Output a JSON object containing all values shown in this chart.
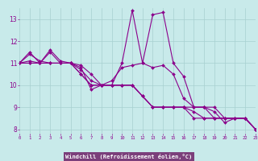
{
  "xlabel": "Windchill (Refroidissement éolien,°C)",
  "background_color": "#c8eaea",
  "line_color": "#8b008b",
  "xlabel_bg": "#7b3f7b",
  "xlabel_fg": "#ffffff",
  "x_hours": [
    0,
    1,
    2,
    3,
    4,
    5,
    6,
    7,
    8,
    9,
    10,
    11,
    12,
    13,
    14,
    15,
    16,
    17,
    18,
    19,
    20,
    21,
    22,
    23
  ],
  "series": [
    [
      11.0,
      11.5,
      11.0,
      11.5,
      11.0,
      11.0,
      10.5,
      10.0,
      10.0,
      10.0,
      10.0,
      10.0,
      9.5,
      9.0,
      9.0,
      9.0,
      9.0,
      8.5,
      8.5,
      8.5,
      8.5,
      8.5,
      8.5,
      8.0
    ],
    [
      11.0,
      11.1,
      11.0,
      11.6,
      11.1,
      11.0,
      10.8,
      9.8,
      10.0,
      10.0,
      11.0,
      13.4,
      11.0,
      13.2,
      13.3,
      11.0,
      10.4,
      9.0,
      9.0,
      8.8,
      8.3,
      8.5,
      8.5,
      8.0
    ],
    [
      11.0,
      11.4,
      11.1,
      11.0,
      11.0,
      11.0,
      10.9,
      10.5,
      10.0,
      10.2,
      10.8,
      10.9,
      11.0,
      10.8,
      10.9,
      10.5,
      9.4,
      9.0,
      9.0,
      9.0,
      8.5,
      8.5,
      8.5,
      8.0
    ],
    [
      11.0,
      11.0,
      11.0,
      11.0,
      11.0,
      11.0,
      10.7,
      10.2,
      10.0,
      10.0,
      10.0,
      10.0,
      9.5,
      9.0,
      9.0,
      9.0,
      9.0,
      9.0,
      9.0,
      8.5,
      8.5,
      8.5,
      8.5,
      8.0
    ],
    [
      11.0,
      11.0,
      11.0,
      11.0,
      11.0,
      11.0,
      10.5,
      10.0,
      10.0,
      10.0,
      10.0,
      10.0,
      9.5,
      9.0,
      9.0,
      9.0,
      9.0,
      8.8,
      8.5,
      8.5,
      8.5,
      8.5,
      8.5,
      8.0
    ]
  ],
  "xlim": [
    0,
    23
  ],
  "ylim": [
    7.8,
    13.5
  ],
  "yticks": [
    8,
    9,
    10,
    11,
    12,
    13
  ],
  "xticks": [
    0,
    1,
    2,
    3,
    4,
    5,
    6,
    7,
    8,
    9,
    10,
    11,
    12,
    13,
    14,
    15,
    16,
    17,
    18,
    19,
    20,
    21,
    22,
    23
  ],
  "markersize": 2.0,
  "linewidth": 0.8,
  "grid_color": "#a8d0d0",
  "tick_color": "#8b008b",
  "label_color": "#8b008b"
}
